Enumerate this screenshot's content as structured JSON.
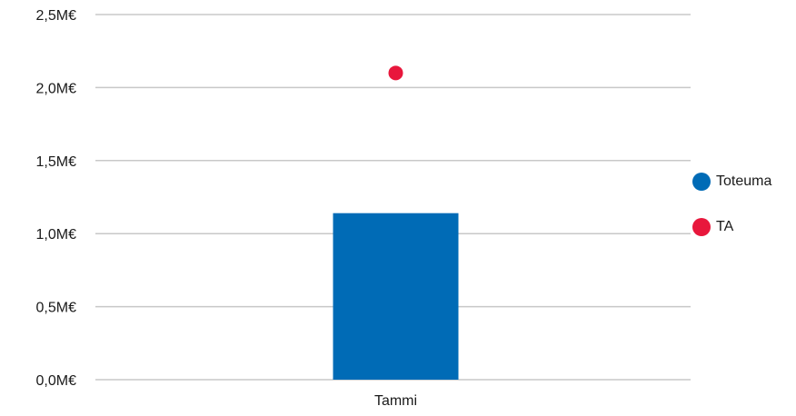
{
  "chart_data": {
    "type": "bar",
    "categories": [
      "Tammi"
    ],
    "series": [
      {
        "name": "Toteuma",
        "kind": "bar",
        "color": "#006bb6",
        "values": [
          1.14
        ]
      },
      {
        "name": "TA",
        "kind": "point",
        "color": "#e8173c",
        "values": [
          2.1
        ]
      }
    ],
    "ylim": [
      0,
      2.5
    ],
    "yticks": [
      "0,0M€",
      "0,5M€",
      "1,0M€",
      "1,5M€",
      "2,0M€",
      "2,5M€"
    ],
    "ytick_values": [
      0,
      0.5,
      1.0,
      1.5,
      2.0,
      2.5
    ],
    "y_unit": "M€",
    "grid": true,
    "legend_position": "right"
  }
}
